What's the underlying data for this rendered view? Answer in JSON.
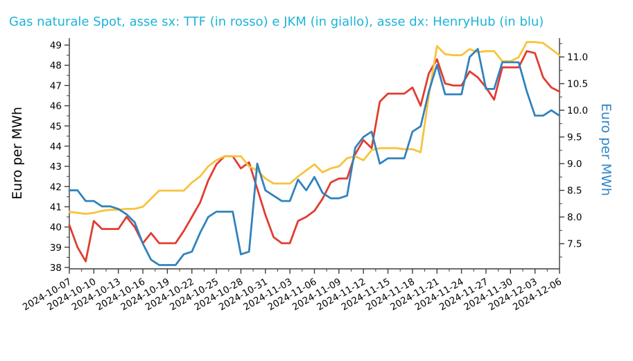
{
  "title": {
    "text": "Gas naturale Spot, asse sx: TTF (in rosso) e JKM (in giallo), asse dx: HenryHub (in blu)",
    "color": "#1cb3d9"
  },
  "chart_data": {
    "type": "line",
    "grid": false,
    "legend": "none",
    "x_dates": [
      "2024-10-07",
      "2024-10-08",
      "2024-10-09",
      "2024-10-10",
      "2024-10-11",
      "2024-10-12",
      "2024-10-13",
      "2024-10-14",
      "2024-10-15",
      "2024-10-16",
      "2024-10-17",
      "2024-10-18",
      "2024-10-19",
      "2024-10-20",
      "2024-10-21",
      "2024-10-22",
      "2024-10-23",
      "2024-10-24",
      "2024-10-25",
      "2024-10-26",
      "2024-10-27",
      "2024-10-28",
      "2024-10-29",
      "2024-10-30",
      "2024-10-31",
      "2024-11-01",
      "2024-11-02",
      "2024-11-03",
      "2024-11-04",
      "2024-11-05",
      "2024-11-06",
      "2024-11-07",
      "2024-11-08",
      "2024-11-09",
      "2024-11-10",
      "2024-11-11",
      "2024-11-12",
      "2024-11-13",
      "2024-11-14",
      "2024-11-15",
      "2024-11-16",
      "2024-11-17",
      "2024-11-18",
      "2024-11-19",
      "2024-11-20",
      "2024-11-21",
      "2024-11-22",
      "2024-11-23",
      "2024-11-24",
      "2024-11-25",
      "2024-11-26",
      "2024-11-27",
      "2024-11-28",
      "2024-11-29",
      "2024-11-30",
      "2024-12-01",
      "2024-12-02",
      "2024-12-03",
      "2024-12-04",
      "2024-12-05",
      "2024-12-06"
    ],
    "x_tick_labels": [
      "2024-10-07",
      "2024-10-10",
      "2024-10-13",
      "2024-10-16",
      "2024-10-19",
      "2024-10-22",
      "2024-10-25",
      "2024-10-28",
      "2024-10-31",
      "2024-11-03",
      "2024-11-06",
      "2024-11-09",
      "2024-11-12",
      "2024-11-15",
      "2024-11-18",
      "2024-11-21",
      "2024-11-24",
      "2024-11-27",
      "2024-11-30",
      "2024-12-03",
      "2024-12-06"
    ],
    "left_axis": {
      "label": "Euro per MWh",
      "color": "#000000",
      "min": 37.93,
      "max": 49.345,
      "ticks": [
        38,
        39,
        40,
        41,
        42,
        43,
        44,
        45,
        46,
        47,
        48,
        49
      ]
    },
    "right_axis": {
      "label": "Euro per MWh",
      "color": "#2e86c9",
      "min": 7.028,
      "max": 11.353,
      "ticks": [
        7.5,
        8.0,
        8.5,
        9.0,
        9.5,
        10.0,
        10.5,
        11.0
      ]
    },
    "series": [
      {
        "name": "TTF",
        "axis": "left",
        "color": "#e13c30",
        "values": [
          40.1,
          39.0,
          38.3,
          40.3,
          39.9,
          39.9,
          39.9,
          40.5,
          40.0,
          39.2,
          39.7,
          39.2,
          39.2,
          39.2,
          39.8,
          40.5,
          41.2,
          42.3,
          43.1,
          43.5,
          43.5,
          42.9,
          43.2,
          41.9,
          40.6,
          39.5,
          39.2,
          39.2,
          40.3,
          40.5,
          40.8,
          41.4,
          42.2,
          42.4,
          42.4,
          43.6,
          44.3,
          43.9,
          46.2,
          46.6,
          46.6,
          46.6,
          46.9,
          46.0,
          47.6,
          48.3,
          47.1,
          47.0,
          47.0,
          47.7,
          47.4,
          46.9,
          46.3,
          47.9,
          47.9,
          47.9,
          48.7,
          48.6,
          47.4,
          46.9,
          46.7
        ]
      },
      {
        "name": "JKM",
        "axis": "left",
        "color": "#f8c33c",
        "values": [
          40.75,
          40.7,
          40.65,
          40.7,
          40.8,
          40.85,
          40.85,
          40.9,
          40.9,
          41.0,
          41.4,
          41.8,
          41.8,
          41.8,
          41.8,
          42.2,
          42.5,
          43.0,
          43.3,
          43.5,
          43.5,
          43.5,
          43.0,
          42.8,
          42.4,
          42.15,
          42.15,
          42.15,
          42.5,
          42.8,
          43.1,
          42.7,
          42.9,
          43.0,
          43.4,
          43.5,
          43.3,
          43.8,
          43.9,
          43.9,
          43.9,
          43.85,
          43.85,
          43.7,
          46.5,
          48.95,
          48.55,
          48.5,
          48.5,
          48.8,
          48.65,
          48.7,
          48.7,
          48.2,
          48.2,
          48.4,
          49.15,
          49.15,
          49.1,
          48.8,
          48.5
        ]
      },
      {
        "name": "HenryHub",
        "axis": "right",
        "color": "#3182bd",
        "values": [
          8.5,
          8.5,
          8.3,
          8.3,
          8.2,
          8.2,
          8.15,
          8.05,
          7.9,
          7.5,
          7.2,
          7.1,
          7.1,
          7.1,
          7.3,
          7.35,
          7.7,
          8.0,
          8.1,
          8.1,
          8.1,
          7.3,
          7.35,
          9.0,
          8.5,
          8.4,
          8.3,
          8.3,
          8.7,
          8.5,
          8.75,
          8.45,
          8.35,
          8.35,
          8.4,
          9.3,
          9.5,
          9.6,
          9.0,
          9.1,
          9.1,
          9.1,
          9.6,
          9.7,
          10.35,
          10.85,
          10.3,
          10.3,
          10.3,
          11.0,
          11.15,
          10.4,
          10.4,
          10.9,
          10.9,
          10.9,
          10.35,
          9.9,
          9.9,
          10.0,
          9.9
        ]
      }
    ]
  }
}
